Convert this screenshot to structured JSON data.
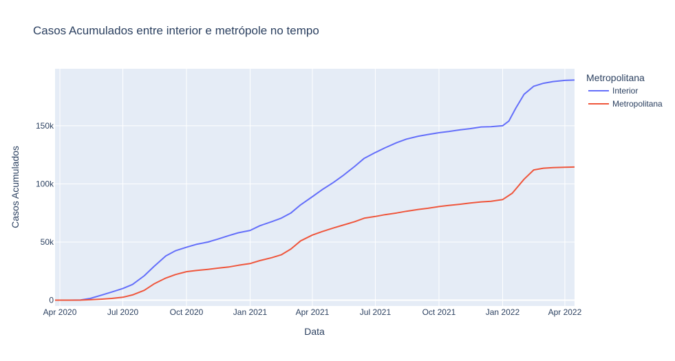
{
  "chart_data": {
    "type": "line",
    "title": "Casos Acumulados entre interior e metrópole no tempo",
    "xlabel": "Data",
    "ylabel": "Casos Acumulados",
    "legend_title": "Metropolitana",
    "legend_position": "right",
    "x_ticks": [
      {
        "date": "2020-04-01",
        "label": "Apr 2020"
      },
      {
        "date": "2020-07-01",
        "label": "Jul 2020"
      },
      {
        "date": "2020-10-01",
        "label": "Oct 2020"
      },
      {
        "date": "2021-01-01",
        "label": "Jan 2021"
      },
      {
        "date": "2021-04-01",
        "label": "Apr 2021"
      },
      {
        "date": "2021-07-01",
        "label": "Jul 2021"
      },
      {
        "date": "2021-10-01",
        "label": "Oct 2021"
      },
      {
        "date": "2022-01-01",
        "label": "Jan 2022"
      },
      {
        "date": "2022-04-01",
        "label": "Apr 2022"
      }
    ],
    "y_ticks": [
      {
        "value": 0,
        "label": "0"
      },
      {
        "value": 50000,
        "label": "50k"
      },
      {
        "value": 100000,
        "label": "100k"
      },
      {
        "value": 150000,
        "label": "150k"
      }
    ],
    "xlim": [
      "2020-03-25",
      "2022-04-15"
    ],
    "ylim": [
      -5000,
      199000
    ],
    "grid": true,
    "background": "#e5ecf6",
    "series": [
      {
        "name": "Interior",
        "color": "#636efa",
        "points": [
          [
            "2020-03-25",
            0
          ],
          [
            "2020-04-15",
            0
          ],
          [
            "2020-05-01",
            200
          ],
          [
            "2020-05-15",
            1500
          ],
          [
            "2020-06-01",
            4500
          ],
          [
            "2020-06-15",
            7000
          ],
          [
            "2020-07-01",
            10000
          ],
          [
            "2020-07-15",
            13500
          ],
          [
            "2020-08-01",
            21000
          ],
          [
            "2020-08-15",
            29000
          ],
          [
            "2020-09-01",
            38000
          ],
          [
            "2020-09-15",
            42500
          ],
          [
            "2020-10-01",
            45500
          ],
          [
            "2020-10-15",
            48000
          ],
          [
            "2020-11-01",
            50000
          ],
          [
            "2020-11-15",
            52500
          ],
          [
            "2020-12-01",
            55500
          ],
          [
            "2020-12-15",
            58000
          ],
          [
            "2021-01-01",
            60000
          ],
          [
            "2021-01-15",
            64000
          ],
          [
            "2021-02-01",
            67500
          ],
          [
            "2021-02-15",
            70500
          ],
          [
            "2021-03-01",
            75000
          ],
          [
            "2021-03-15",
            82000
          ],
          [
            "2021-04-01",
            89000
          ],
          [
            "2021-04-15",
            95000
          ],
          [
            "2021-05-01",
            101000
          ],
          [
            "2021-05-15",
            107000
          ],
          [
            "2021-06-01",
            115000
          ],
          [
            "2021-06-15",
            122000
          ],
          [
            "2021-07-01",
            127000
          ],
          [
            "2021-07-15",
            131000
          ],
          [
            "2021-08-01",
            135500
          ],
          [
            "2021-08-15",
            138500
          ],
          [
            "2021-09-01",
            141000
          ],
          [
            "2021-09-15",
            142500
          ],
          [
            "2021-10-01",
            144000
          ],
          [
            "2021-10-15",
            145000
          ],
          [
            "2021-11-01",
            146500
          ],
          [
            "2021-11-15",
            147500
          ],
          [
            "2021-12-01",
            149000
          ],
          [
            "2021-12-15",
            149200
          ],
          [
            "2022-01-01",
            150000
          ],
          [
            "2022-01-10",
            154000
          ],
          [
            "2022-01-20",
            165000
          ],
          [
            "2022-02-01",
            177000
          ],
          [
            "2022-02-15",
            184000
          ],
          [
            "2022-03-01",
            186500
          ],
          [
            "2022-03-15",
            188000
          ],
          [
            "2022-04-01",
            189000
          ],
          [
            "2022-04-15",
            189300
          ]
        ]
      },
      {
        "name": "Metropolitana",
        "color": "#ef553b",
        "points": [
          [
            "2020-03-25",
            0
          ],
          [
            "2020-04-15",
            0
          ],
          [
            "2020-05-01",
            100
          ],
          [
            "2020-05-15",
            400
          ],
          [
            "2020-06-01",
            900
          ],
          [
            "2020-06-15",
            1500
          ],
          [
            "2020-07-01",
            2500
          ],
          [
            "2020-07-15",
            4500
          ],
          [
            "2020-08-01",
            8500
          ],
          [
            "2020-08-15",
            14000
          ],
          [
            "2020-09-01",
            19000
          ],
          [
            "2020-09-15",
            22000
          ],
          [
            "2020-10-01",
            24500
          ],
          [
            "2020-10-15",
            25500
          ],
          [
            "2020-11-01",
            26500
          ],
          [
            "2020-11-15",
            27500
          ],
          [
            "2020-12-01",
            28500
          ],
          [
            "2020-12-15",
            30000
          ],
          [
            "2021-01-01",
            31500
          ],
          [
            "2021-01-15",
            34000
          ],
          [
            "2021-02-01",
            36500
          ],
          [
            "2021-02-15",
            39000
          ],
          [
            "2021-03-01",
            44000
          ],
          [
            "2021-03-15",
            51000
          ],
          [
            "2021-04-01",
            56000
          ],
          [
            "2021-04-15",
            59000
          ],
          [
            "2021-05-01",
            62000
          ],
          [
            "2021-05-15",
            64500
          ],
          [
            "2021-06-01",
            67500
          ],
          [
            "2021-06-15",
            70500
          ],
          [
            "2021-07-01",
            72000
          ],
          [
            "2021-07-15",
            73500
          ],
          [
            "2021-08-01",
            75000
          ],
          [
            "2021-08-15",
            76500
          ],
          [
            "2021-09-01",
            78000
          ],
          [
            "2021-09-15",
            79000
          ],
          [
            "2021-10-01",
            80500
          ],
          [
            "2021-10-15",
            81500
          ],
          [
            "2021-11-01",
            82500
          ],
          [
            "2021-11-15",
            83500
          ],
          [
            "2021-12-01",
            84500
          ],
          [
            "2021-12-15",
            85000
          ],
          [
            "2022-01-01",
            86500
          ],
          [
            "2022-01-15",
            92000
          ],
          [
            "2022-02-01",
            104000
          ],
          [
            "2022-02-15",
            112000
          ],
          [
            "2022-03-01",
            113500
          ],
          [
            "2022-03-15",
            114000
          ],
          [
            "2022-04-01",
            114300
          ],
          [
            "2022-04-15",
            114500
          ]
        ]
      }
    ]
  }
}
